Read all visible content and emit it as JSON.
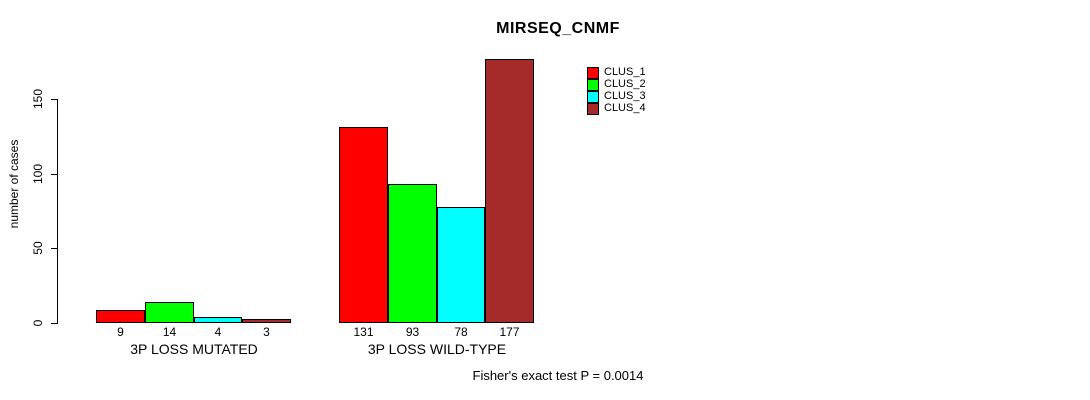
{
  "chart_data": {
    "type": "bar",
    "title": "MIRSEQ_CNMF",
    "ylabel": "number of cases",
    "xlabel": "",
    "footer": "Fisher's exact test P = 0.0014",
    "categories": [
      "3P LOSS MUTATED",
      "3P LOSS WILD-TYPE"
    ],
    "series": [
      {
        "name": "CLUS_1",
        "color": "#ff0000",
        "values": [
          9,
          131
        ]
      },
      {
        "name": "CLUS_2",
        "color": "#00ff00",
        "values": [
          14,
          93
        ]
      },
      {
        "name": "CLUS_3",
        "color": "#00ffff",
        "values": [
          4,
          78
        ]
      },
      {
        "name": "CLUS_4",
        "color": "#a52a2a",
        "values": [
          3,
          177
        ]
      }
    ],
    "yticks": [
      0,
      50,
      100,
      150
    ],
    "ylim": [
      0,
      177
    ],
    "bar_value_labels": true,
    "grid": false,
    "legend_position": "top-right",
    "background": "#ffffff",
    "axis_color": "#000000"
  }
}
